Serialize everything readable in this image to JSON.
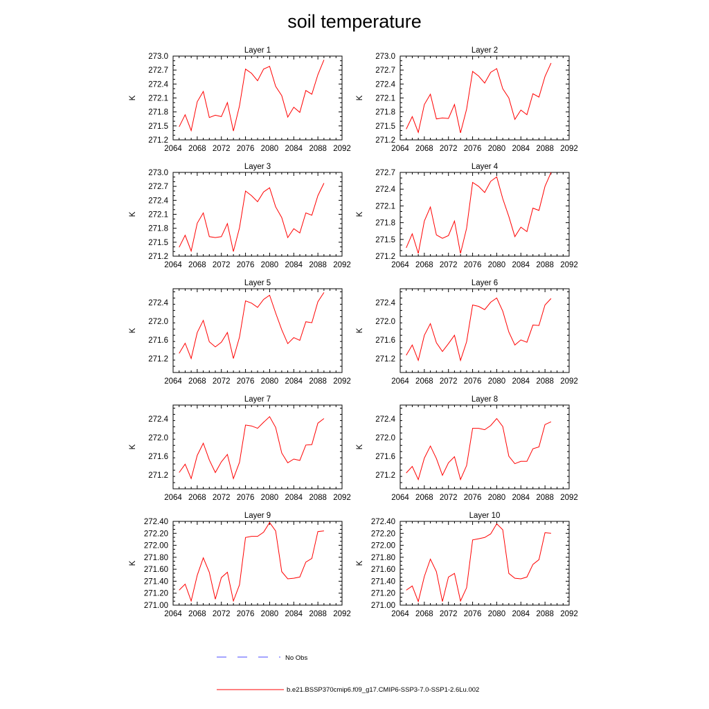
{
  "page_title": "soil temperature",
  "colors": {
    "series": "#ff0000",
    "no_obs": "#4a4aff",
    "axis": "#000000"
  },
  "legend": {
    "no_obs_label": "No Obs",
    "series_label": "b.e21.BSSP370cmip6.f09_g17.CMIP6-SSP3-7.0-SSP1-2.6Lu.002"
  },
  "chart_data": [
    {
      "type": "line",
      "title": "Layer 1",
      "ylabel": "K",
      "xlim": [
        2064,
        2092
      ],
      "xticks": [
        2064,
        2068,
        2072,
        2076,
        2080,
        2084,
        2088,
        2092
      ],
      "ylim": [
        271.2,
        273.0
      ],
      "yticks": [
        "271.2",
        "271.5",
        "271.8",
        "272.1",
        "272.4",
        "272.7",
        "273.0"
      ],
      "x": [
        2065,
        2066,
        2067,
        2068,
        2069,
        2070,
        2071,
        2072,
        2073,
        2074,
        2075,
        2076,
        2077,
        2078,
        2079,
        2080,
        2081,
        2082,
        2083,
        2084,
        2085,
        2086,
        2087,
        2088,
        2089
      ],
      "series": [
        {
          "values": [
            271.48,
            271.74,
            271.4,
            272.02,
            272.24,
            271.68,
            271.73,
            271.7,
            272.0,
            271.39,
            271.93,
            272.72,
            272.63,
            272.47,
            272.72,
            272.78,
            272.35,
            272.15,
            271.69,
            271.9,
            271.79,
            272.26,
            272.18,
            272.6,
            272.92
          ]
        }
      ]
    },
    {
      "type": "line",
      "title": "Layer 2",
      "ylabel": "K",
      "xlim": [
        2064,
        2092
      ],
      "xticks": [
        2064,
        2068,
        2072,
        2076,
        2080,
        2084,
        2088,
        2092
      ],
      "ylim": [
        271.2,
        273.0
      ],
      "yticks": [
        "271.2",
        "271.5",
        "271.8",
        "272.1",
        "272.4",
        "272.7",
        "273.0"
      ],
      "x": [
        2065,
        2066,
        2067,
        2068,
        2069,
        2070,
        2071,
        2072,
        2073,
        2074,
        2075,
        2076,
        2077,
        2078,
        2079,
        2080,
        2081,
        2082,
        2083,
        2084,
        2085,
        2086,
        2087,
        2088,
        2089
      ],
      "series": [
        {
          "values": [
            271.43,
            271.7,
            271.36,
            271.96,
            272.18,
            271.65,
            271.67,
            271.66,
            271.96,
            271.35,
            271.86,
            272.67,
            272.57,
            272.42,
            272.65,
            272.73,
            272.3,
            272.1,
            271.64,
            271.84,
            271.74,
            272.19,
            272.12,
            272.56,
            272.85
          ]
        }
      ]
    },
    {
      "type": "line",
      "title": "Layer 3",
      "ylabel": "K",
      "xlim": [
        2064,
        2092
      ],
      "xticks": [
        2064,
        2068,
        2072,
        2076,
        2080,
        2084,
        2088,
        2092
      ],
      "ylim": [
        271.2,
        273.0
      ],
      "yticks": [
        "271.2",
        "271.5",
        "271.8",
        "272.1",
        "272.4",
        "272.7",
        "273.0"
      ],
      "x": [
        2065,
        2066,
        2067,
        2068,
        2069,
        2070,
        2071,
        2072,
        2073,
        2074,
        2075,
        2076,
        2077,
        2078,
        2079,
        2080,
        2081,
        2082,
        2083,
        2084,
        2085,
        2086,
        2087,
        2088,
        2089
      ],
      "series": [
        {
          "values": [
            271.39,
            271.65,
            271.31,
            271.91,
            272.13,
            271.62,
            271.6,
            271.62,
            271.9,
            271.3,
            271.81,
            272.6,
            272.5,
            272.37,
            272.58,
            272.67,
            272.26,
            272.03,
            271.6,
            271.79,
            271.7,
            272.13,
            272.08,
            272.5,
            272.77
          ]
        }
      ]
    },
    {
      "type": "line",
      "title": "Layer 4",
      "ylabel": "K",
      "xlim": [
        2064,
        2092
      ],
      "xticks": [
        2064,
        2068,
        2072,
        2076,
        2080,
        2084,
        2088,
        2092
      ],
      "ylim": [
        271.2,
        272.7
      ],
      "yticks": [
        "271.2",
        "271.5",
        "271.8",
        "272.1",
        "272.4",
        "272.7"
      ],
      "x": [
        2065,
        2066,
        2067,
        2068,
        2069,
        2070,
        2071,
        2072,
        2073,
        2074,
        2075,
        2076,
        2077,
        2078,
        2079,
        2080,
        2081,
        2082,
        2083,
        2084,
        2085,
        2086,
        2087,
        2088,
        2089
      ],
      "series": [
        {
          "values": [
            271.35,
            271.6,
            271.25,
            271.83,
            272.08,
            271.58,
            271.52,
            271.57,
            271.83,
            271.25,
            271.7,
            272.52,
            272.45,
            272.34,
            272.54,
            272.62,
            272.23,
            271.91,
            271.55,
            271.72,
            271.64,
            272.06,
            272.02,
            272.45,
            272.7
          ]
        }
      ]
    },
    {
      "type": "line",
      "title": "Layer 5",
      "ylabel": "K",
      "xlim": [
        2064,
        2092
      ],
      "xticks": [
        2064,
        2068,
        2072,
        2076,
        2080,
        2084,
        2088,
        2092
      ],
      "ylim": [
        270.9,
        272.7
      ],
      "yticks": [
        "271.2",
        "271.6",
        "272.0",
        "272.4"
      ],
      "x": [
        2065,
        2066,
        2067,
        2068,
        2069,
        2070,
        2071,
        2072,
        2073,
        2074,
        2075,
        2076,
        2077,
        2078,
        2079,
        2080,
        2081,
        2082,
        2083,
        2084,
        2085,
        2086,
        2087,
        2088,
        2089
      ],
      "series": [
        {
          "values": [
            271.31,
            271.53,
            271.2,
            271.76,
            272.02,
            271.56,
            271.45,
            271.55,
            271.76,
            271.2,
            271.66,
            272.44,
            272.39,
            272.3,
            272.47,
            272.56,
            272.18,
            271.82,
            271.52,
            271.65,
            271.59,
            271.99,
            271.97,
            272.42,
            272.62
          ]
        }
      ]
    },
    {
      "type": "line",
      "title": "Layer 6",
      "ylabel": "K",
      "xlim": [
        2064,
        2092
      ],
      "xticks": [
        2064,
        2068,
        2072,
        2076,
        2080,
        2084,
        2088,
        2092
      ],
      "ylim": [
        270.9,
        272.7
      ],
      "yticks": [
        "271.2",
        "271.6",
        "272.0",
        "272.4"
      ],
      "x": [
        2065,
        2066,
        2067,
        2068,
        2069,
        2070,
        2071,
        2072,
        2073,
        2074,
        2075,
        2076,
        2077,
        2078,
        2079,
        2080,
        2081,
        2082,
        2083,
        2084,
        2085,
        2086,
        2087,
        2088,
        2089
      ],
      "series": [
        {
          "values": [
            271.27,
            271.49,
            271.16,
            271.7,
            271.95,
            271.54,
            271.35,
            271.52,
            271.7,
            271.16,
            271.56,
            272.35,
            272.32,
            272.25,
            272.41,
            272.5,
            272.22,
            271.77,
            271.49,
            271.6,
            271.55,
            271.92,
            271.91,
            272.35,
            272.49
          ]
        }
      ]
    },
    {
      "type": "line",
      "title": "Layer 7",
      "ylabel": "K",
      "xlim": [
        2064,
        2092
      ],
      "xticks": [
        2064,
        2068,
        2072,
        2076,
        2080,
        2084,
        2088,
        2092
      ],
      "ylim": [
        270.9,
        272.7
      ],
      "yticks": [
        "271.2",
        "271.6",
        "272.0",
        "272.4"
      ],
      "x": [
        2065,
        2066,
        2067,
        2068,
        2069,
        2070,
        2071,
        2072,
        2073,
        2074,
        2075,
        2076,
        2077,
        2078,
        2079,
        2080,
        2081,
        2082,
        2083,
        2084,
        2085,
        2086,
        2087,
        2088,
        2089
      ],
      "series": [
        {
          "values": [
            271.25,
            271.43,
            271.12,
            271.62,
            271.88,
            271.52,
            271.25,
            271.48,
            271.64,
            271.12,
            271.47,
            272.27,
            272.25,
            272.2,
            272.33,
            272.45,
            272.22,
            271.67,
            271.46,
            271.54,
            271.51,
            271.84,
            271.85,
            272.31,
            272.41
          ]
        }
      ]
    },
    {
      "type": "line",
      "title": "Layer 8",
      "ylabel": "K",
      "xlim": [
        2064,
        2092
      ],
      "xticks": [
        2064,
        2068,
        2072,
        2076,
        2080,
        2084,
        2088,
        2092
      ],
      "ylim": [
        270.9,
        272.7
      ],
      "yticks": [
        "271.2",
        "271.6",
        "272.0",
        "272.4"
      ],
      "x": [
        2065,
        2066,
        2067,
        2068,
        2069,
        2070,
        2071,
        2072,
        2073,
        2074,
        2075,
        2076,
        2077,
        2078,
        2079,
        2080,
        2081,
        2082,
        2083,
        2084,
        2085,
        2086,
        2087,
        2088,
        2089
      ],
      "series": [
        {
          "values": [
            271.24,
            271.38,
            271.1,
            271.56,
            271.82,
            271.55,
            271.19,
            271.46,
            271.59,
            271.1,
            271.4,
            272.2,
            272.2,
            272.17,
            272.26,
            272.41,
            272.24,
            271.6,
            271.44,
            271.49,
            271.49,
            271.76,
            271.8,
            272.28,
            272.34
          ]
        }
      ]
    },
    {
      "type": "line",
      "title": "Layer 9",
      "ylabel": "K",
      "xlim": [
        2064,
        2092
      ],
      "xticks": [
        2064,
        2068,
        2072,
        2076,
        2080,
        2084,
        2088,
        2092
      ],
      "ylim": [
        271.0,
        272.4
      ],
      "yticks": [
        "271.00",
        "271.20",
        "271.40",
        "271.60",
        "271.80",
        "272.00",
        "272.20",
        "272.40"
      ],
      "x": [
        2065,
        2066,
        2067,
        2068,
        2069,
        2070,
        2071,
        2072,
        2073,
        2074,
        2075,
        2076,
        2077,
        2078,
        2079,
        2080,
        2081,
        2082,
        2083,
        2084,
        2085,
        2086,
        2087,
        2088,
        2089
      ],
      "series": [
        {
          "values": [
            271.25,
            271.35,
            271.07,
            271.5,
            271.79,
            271.55,
            271.1,
            271.46,
            271.55,
            271.07,
            271.34,
            272.13,
            272.15,
            272.15,
            272.22,
            272.38,
            272.24,
            271.56,
            271.44,
            271.45,
            271.47,
            271.72,
            271.78,
            272.23,
            272.24
          ]
        }
      ]
    },
    {
      "type": "line",
      "title": "Layer 10",
      "ylabel": "K",
      "xlim": [
        2064,
        2092
      ],
      "xticks": [
        2064,
        2068,
        2072,
        2076,
        2080,
        2084,
        2088,
        2092
      ],
      "ylim": [
        271.0,
        272.4
      ],
      "yticks": [
        "271.00",
        "271.20",
        "271.40",
        "271.60",
        "271.80",
        "272.00",
        "272.20",
        "272.40"
      ],
      "x": [
        2065,
        2066,
        2067,
        2068,
        2069,
        2070,
        2071,
        2072,
        2073,
        2074,
        2075,
        2076,
        2077,
        2078,
        2079,
        2080,
        2081,
        2082,
        2083,
        2084,
        2085,
        2086,
        2087,
        2088,
        2089
      ],
      "series": [
        {
          "values": [
            271.25,
            271.32,
            271.06,
            271.48,
            271.77,
            271.56,
            271.06,
            271.47,
            271.53,
            271.07,
            271.29,
            272.09,
            272.11,
            272.13,
            272.19,
            272.36,
            272.26,
            271.53,
            271.45,
            271.44,
            271.47,
            271.68,
            271.76,
            272.21,
            272.2
          ]
        }
      ]
    }
  ]
}
